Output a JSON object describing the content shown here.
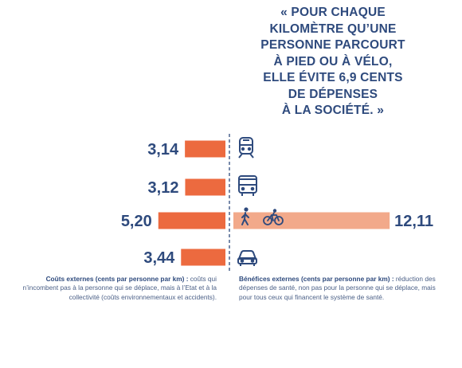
{
  "quote": {
    "lines": [
      "« POUR CHAQUE",
      "KILOMÈTRE QU’UNE",
      "PERSONNE PARCOURT",
      "À PIED OU À VÉLO,",
      "ELLE ÉVITE 6,9 CENTS",
      "DE DÉPENSES",
      "À LA SOCIÉTÉ. »"
    ]
  },
  "colors": {
    "cost_bar": "#ec6a3f",
    "benefit_bar": "#f2a98a",
    "text": "#2e4a7d",
    "divider": "#2e4a7d"
  },
  "chart_data": {
    "type": "bar",
    "orientation": "horizontal-diverging",
    "categories": [
      "train-icon",
      "bus-icon",
      "walk-bike-icon",
      "car-icon"
    ],
    "series": [
      {
        "name": "Coûts externes (cents par personne par km)",
        "values": [
          3.14,
          3.12,
          5.2,
          3.44
        ],
        "labels": [
          "3,14",
          "3,12",
          "5,20",
          "3,44"
        ],
        "side": "left"
      },
      {
        "name": "Bénéfices externes (cents par personne par km)",
        "values": [
          null,
          null,
          12.11,
          null
        ],
        "labels": [
          "",
          "",
          "12,11",
          ""
        ],
        "side": "right"
      }
    ],
    "title": "",
    "xlabel": "",
    "ylabel": "",
    "grid": false,
    "legend": "none"
  },
  "notes": {
    "left_title": "Coûts externes (cents par personne par km) :",
    "left_body": "coûts qui n’incombent pas à la personne qui se déplace, mais à l’Etat et à la collectivité (coûts environnementaux et accidents).",
    "right_title": "Bénéfices externes (cents par personne par km) :",
    "right_body": "réduction des dépenses de santé, non pas pour la personne qui se déplace, mais pour tous ceux qui financent le système de santé."
  }
}
